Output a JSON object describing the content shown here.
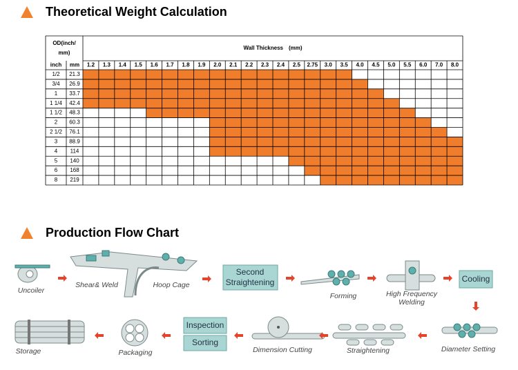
{
  "table_title": "Theoretical Weight Calculation",
  "table": {
    "header": {
      "od": [
        "OD(inch/",
        "mm)"
      ],
      "wall": "Wall Thickness　(mm)",
      "inch": "inch",
      "mm": "mm",
      "thickness": [
        "1.2",
        "1.3",
        "1.4",
        "1.5",
        "1.6",
        "1.7",
        "1.8",
        "1.9",
        "2.0",
        "2.1",
        "2.2",
        "2.3",
        "2.4",
        "2.5",
        "2.75",
        "3.0",
        "3.5",
        "4.0",
        "4.5",
        "5.0",
        "5.5",
        "6.0",
        "7.0",
        "8.0"
      ]
    },
    "rows": [
      {
        "inch": "1/2",
        "mm": "21.3",
        "filled": [
          0,
          16
        ]
      },
      {
        "inch": "3/4",
        "mm": "26.9",
        "filled": [
          0,
          17
        ]
      },
      {
        "inch": "1",
        "mm": "33.7",
        "filled": [
          0,
          18
        ]
      },
      {
        "inch": "1 1/4",
        "mm": "42.4",
        "filled": [
          0,
          19
        ]
      },
      {
        "inch": "1 1/2",
        "mm": "48.3",
        "filled": [
          4,
          20
        ]
      },
      {
        "inch": "2",
        "mm": "60.3",
        "filled": [
          8,
          21
        ]
      },
      {
        "inch": "2 1/2",
        "mm": "76.1",
        "filled": [
          8,
          22
        ]
      },
      {
        "inch": "3",
        "mm": "88.9",
        "filled": [
          8,
          23
        ]
      },
      {
        "inch": "4",
        "mm": "114",
        "filled": [
          8,
          23
        ]
      },
      {
        "inch": "5",
        "mm": "140",
        "filled": [
          13,
          23
        ]
      },
      {
        "inch": "6",
        "mm": "168",
        "filled": [
          14,
          23
        ]
      },
      {
        "inch": "8",
        "mm": "219",
        "filled": [
          15,
          23
        ]
      }
    ]
  },
  "flow_title": "Production Flow Chart",
  "flow": {
    "uncoiler": "Uncoiler",
    "shear_weld": "Shear& Weld",
    "hoop_cage": "Hoop Cage",
    "second_straightening": [
      "Second",
      "Straightening"
    ],
    "forming": "Forming",
    "hf_welding": [
      "High Frequency",
      "Welding"
    ],
    "cooling": "Cooling",
    "diameter_setting": "Diameter Setting",
    "straightening": "Straightening",
    "dimension_cutting": "Dimension Cutting",
    "inspection": "Inspection",
    "sorting": "Sorting",
    "packaging": "Packaging",
    "storage": "Storage"
  }
}
